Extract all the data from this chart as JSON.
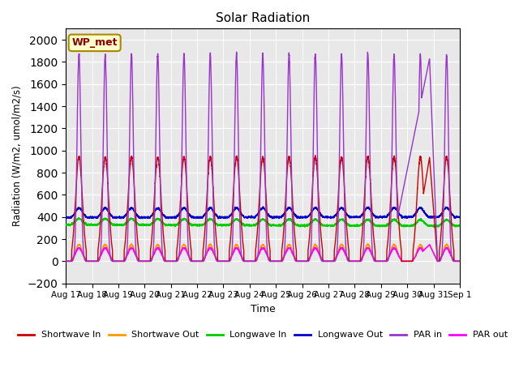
{
  "title": "Solar Radiation",
  "xlabel": "Time",
  "ylabel": "Radiation (W/m2, umol/m2/s)",
  "ylim": [
    -200,
    2100
  ],
  "yticks": [
    -200,
    0,
    200,
    400,
    600,
    800,
    1000,
    1200,
    1400,
    1600,
    1800,
    2000
  ],
  "label_box": "WP_met",
  "bg_color": "#e8e8e8",
  "series_colors": {
    "Shortwave In": "#cc0000",
    "Shortwave Out": "#ff9900",
    "Longwave In": "#00cc00",
    "Longwave Out": "#0000cc",
    "PAR in": "#9933cc",
    "PAR out": "#ff00ff"
  },
  "n_days": 15,
  "start_day": 17,
  "ppd": 288,
  "sw_in_peak": 940,
  "sw_out_peak": 150,
  "lw_in_base": 330,
  "lw_in_amp": 55,
  "lw_out_base": 395,
  "lw_out_amp": 85,
  "par_in_peak": 1870,
  "par_out_peak": 120,
  "par_out_peak_last": 150
}
